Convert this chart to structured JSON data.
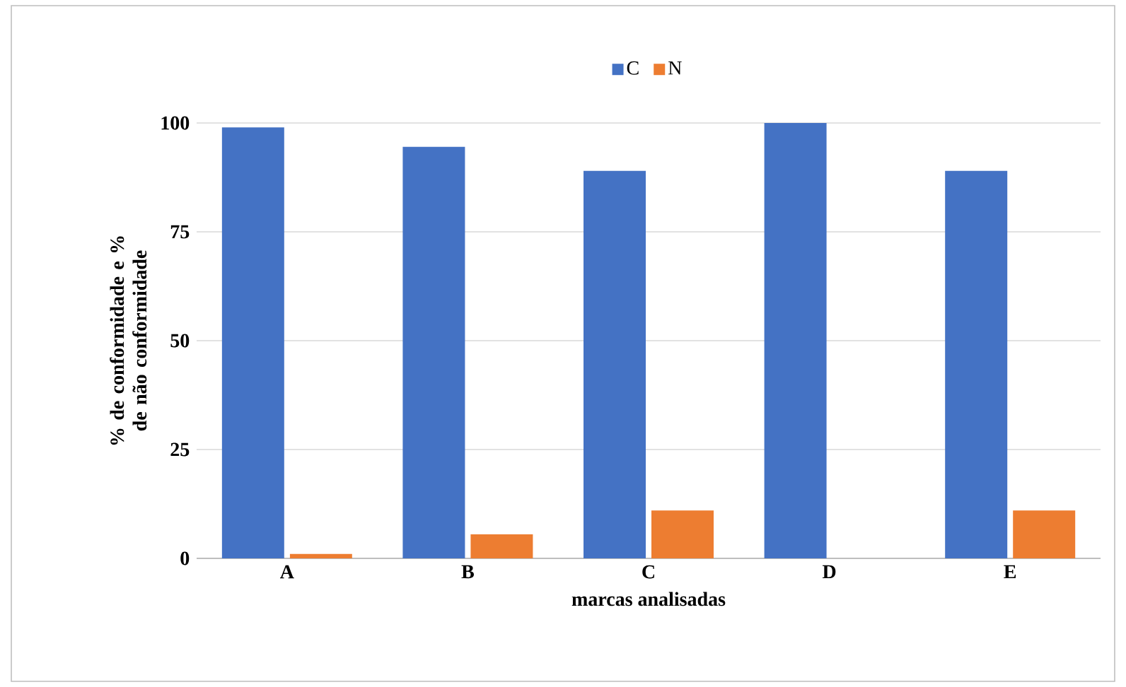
{
  "chart_data": {
    "type": "bar",
    "xlabel": "marcas analisadas",
    "ylabel": "% de conformidade e % de não conformidade",
    "categories": [
      "A",
      "B",
      "C",
      "D",
      "E"
    ],
    "series": [
      {
        "name": "C",
        "color": "#4472c4",
        "values": [
          99,
          94.5,
          89,
          100,
          89
        ]
      },
      {
        "name": "N",
        "color": "#ed7d31",
        "values": [
          1,
          5.5,
          11,
          0,
          11
        ]
      }
    ],
    "ylim": [
      0,
      100
    ],
    "yticks": [
      0,
      25,
      50,
      75,
      100
    ],
    "grid": "y",
    "legend": "top"
  }
}
